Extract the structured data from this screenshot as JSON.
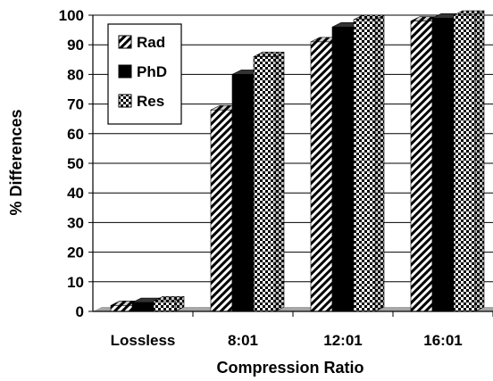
{
  "chart_data": {
    "type": "bar",
    "xlabel": "Compression Ratio",
    "ylabel": "% Differences",
    "ylim": [
      0,
      100
    ],
    "ytick_step": 10,
    "categories": [
      "Lossless",
      "8:01",
      "12:01",
      "16:01"
    ],
    "series": [
      {
        "name": "Rad",
        "pattern": "diagonal-hatch",
        "values": [
          2,
          68,
          91,
          98
        ]
      },
      {
        "name": "PhD",
        "pattern": "solid-black",
        "values": [
          3,
          80,
          96,
          99
        ]
      },
      {
        "name": "Res",
        "pattern": "checker",
        "values": [
          3.5,
          86,
          98.5,
          100
        ]
      }
    ],
    "grid": true,
    "legend_position": "top-left",
    "floor_color": "#a6a6a6"
  }
}
